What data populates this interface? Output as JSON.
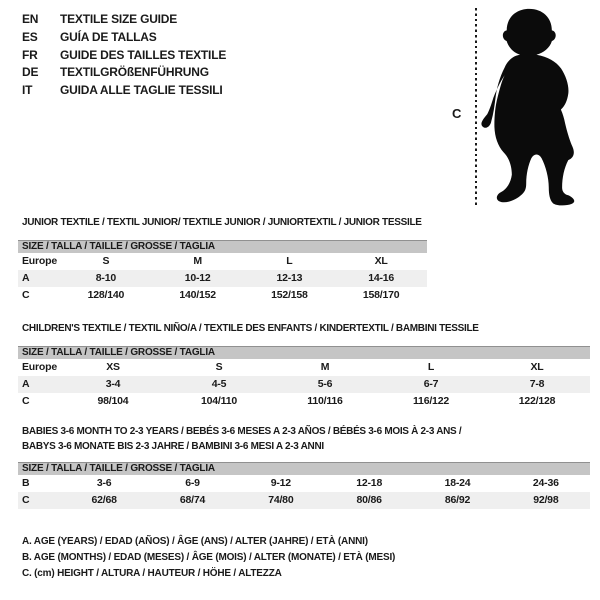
{
  "colors": {
    "page-bg": "#ffffff",
    "text": "#1a1a1a",
    "band-bg": "#c5c5c5",
    "band-border": "#909090",
    "alt-row": "#efefef",
    "silhouette": "#0b0b0b"
  },
  "languages": [
    {
      "code": "EN",
      "label": "TEXTILE SIZE GUIDE"
    },
    {
      "code": "ES",
      "label": "GUÍA DE TALLAS"
    },
    {
      "code": "FR",
      "label": "GUIDE DES TAILLES TEXTILE"
    },
    {
      "code": "DE",
      "label": "TEXTILGRÖßENFÜHRUNG"
    },
    {
      "code": "IT",
      "label": "GUIDA ALLE TAGLIE TESSILI"
    }
  ],
  "figure": {
    "icon": "baby-silhouette",
    "measure_label": "C"
  },
  "sections": [
    {
      "title_lines": [
        "JUNIOR TEXTILE / TEXTIL JUNIOR/ TEXTILE JUNIOR / JUNIORTEXTIL / JUNIOR TESSILE"
      ],
      "size_header": "SIZE / TALLA / TAILLE / GRÖSSE / TAGLIA",
      "rows": [
        {
          "label": "Europe",
          "values": [
            "S",
            "M",
            "L",
            "XL"
          ]
        },
        {
          "label": "A",
          "values": [
            "8-10",
            "10-12",
            "12-13",
            "14-16"
          ]
        },
        {
          "label": "C",
          "values": [
            "128/140",
            "140/152",
            "152/158",
            "158/170"
          ]
        }
      ]
    },
    {
      "title_lines": [
        "CHILDREN'S TEXTILE / TEXTIL NIÑO/A / TEXTILE DES ENFANTS / KINDERTEXTIL / BAMBINI TESSILE"
      ],
      "size_header": "SIZE / TALLA / TAILLE / GRÖSSE / TAGLIA",
      "rows": [
        {
          "label": "Europe",
          "values": [
            "XS",
            "S",
            "M",
            "L",
            "XL"
          ]
        },
        {
          "label": "A",
          "values": [
            "3-4",
            "4-5",
            "5-6",
            "6-7",
            "7-8"
          ]
        },
        {
          "label": "C",
          "values": [
            "98/104",
            "104/110",
            "110/116",
            "116/122",
            "122/128"
          ]
        }
      ]
    },
    {
      "title_lines": [
        "BABIES 3-6 MONTH TO 2-3 YEARS / BEBÉS 3-6 MESES A 2-3 AÑOS / BÉBÉS 3-6 MOIS À 2-3 ANS /",
        "BABYS 3-6 MONATE BIS 2-3 JAHRE / BAMBINI 3-6 MESI A 2-3 ANNI"
      ],
      "size_header": "SIZE / TALLA / TAILLE / GRÖSSE / TAGLIA",
      "rows": [
        {
          "label": "B",
          "values": [
            "3-6",
            "6-9",
            "9-12",
            "12-18",
            "18-24",
            "24-36"
          ]
        },
        {
          "label": "C",
          "values": [
            "62/68",
            "68/74",
            "74/80",
            "80/86",
            "86/92",
            "92/98"
          ]
        }
      ]
    }
  ],
  "notes": [
    "A. AGE (YEARS) / EDAD (AÑOS) / ÂGE (ANS) / ALTER (JAHRE) / ETÀ (ANNI)",
    "B. AGE (MONTHS) / EDAD (MESES) / ÂGE (MOIS) / ALTER (MONATE) / ETÀ (MESI)",
    "C. (cm) HEIGHT / ALTURA / HAUTEUR / HÖHE / ALTEZZA"
  ]
}
